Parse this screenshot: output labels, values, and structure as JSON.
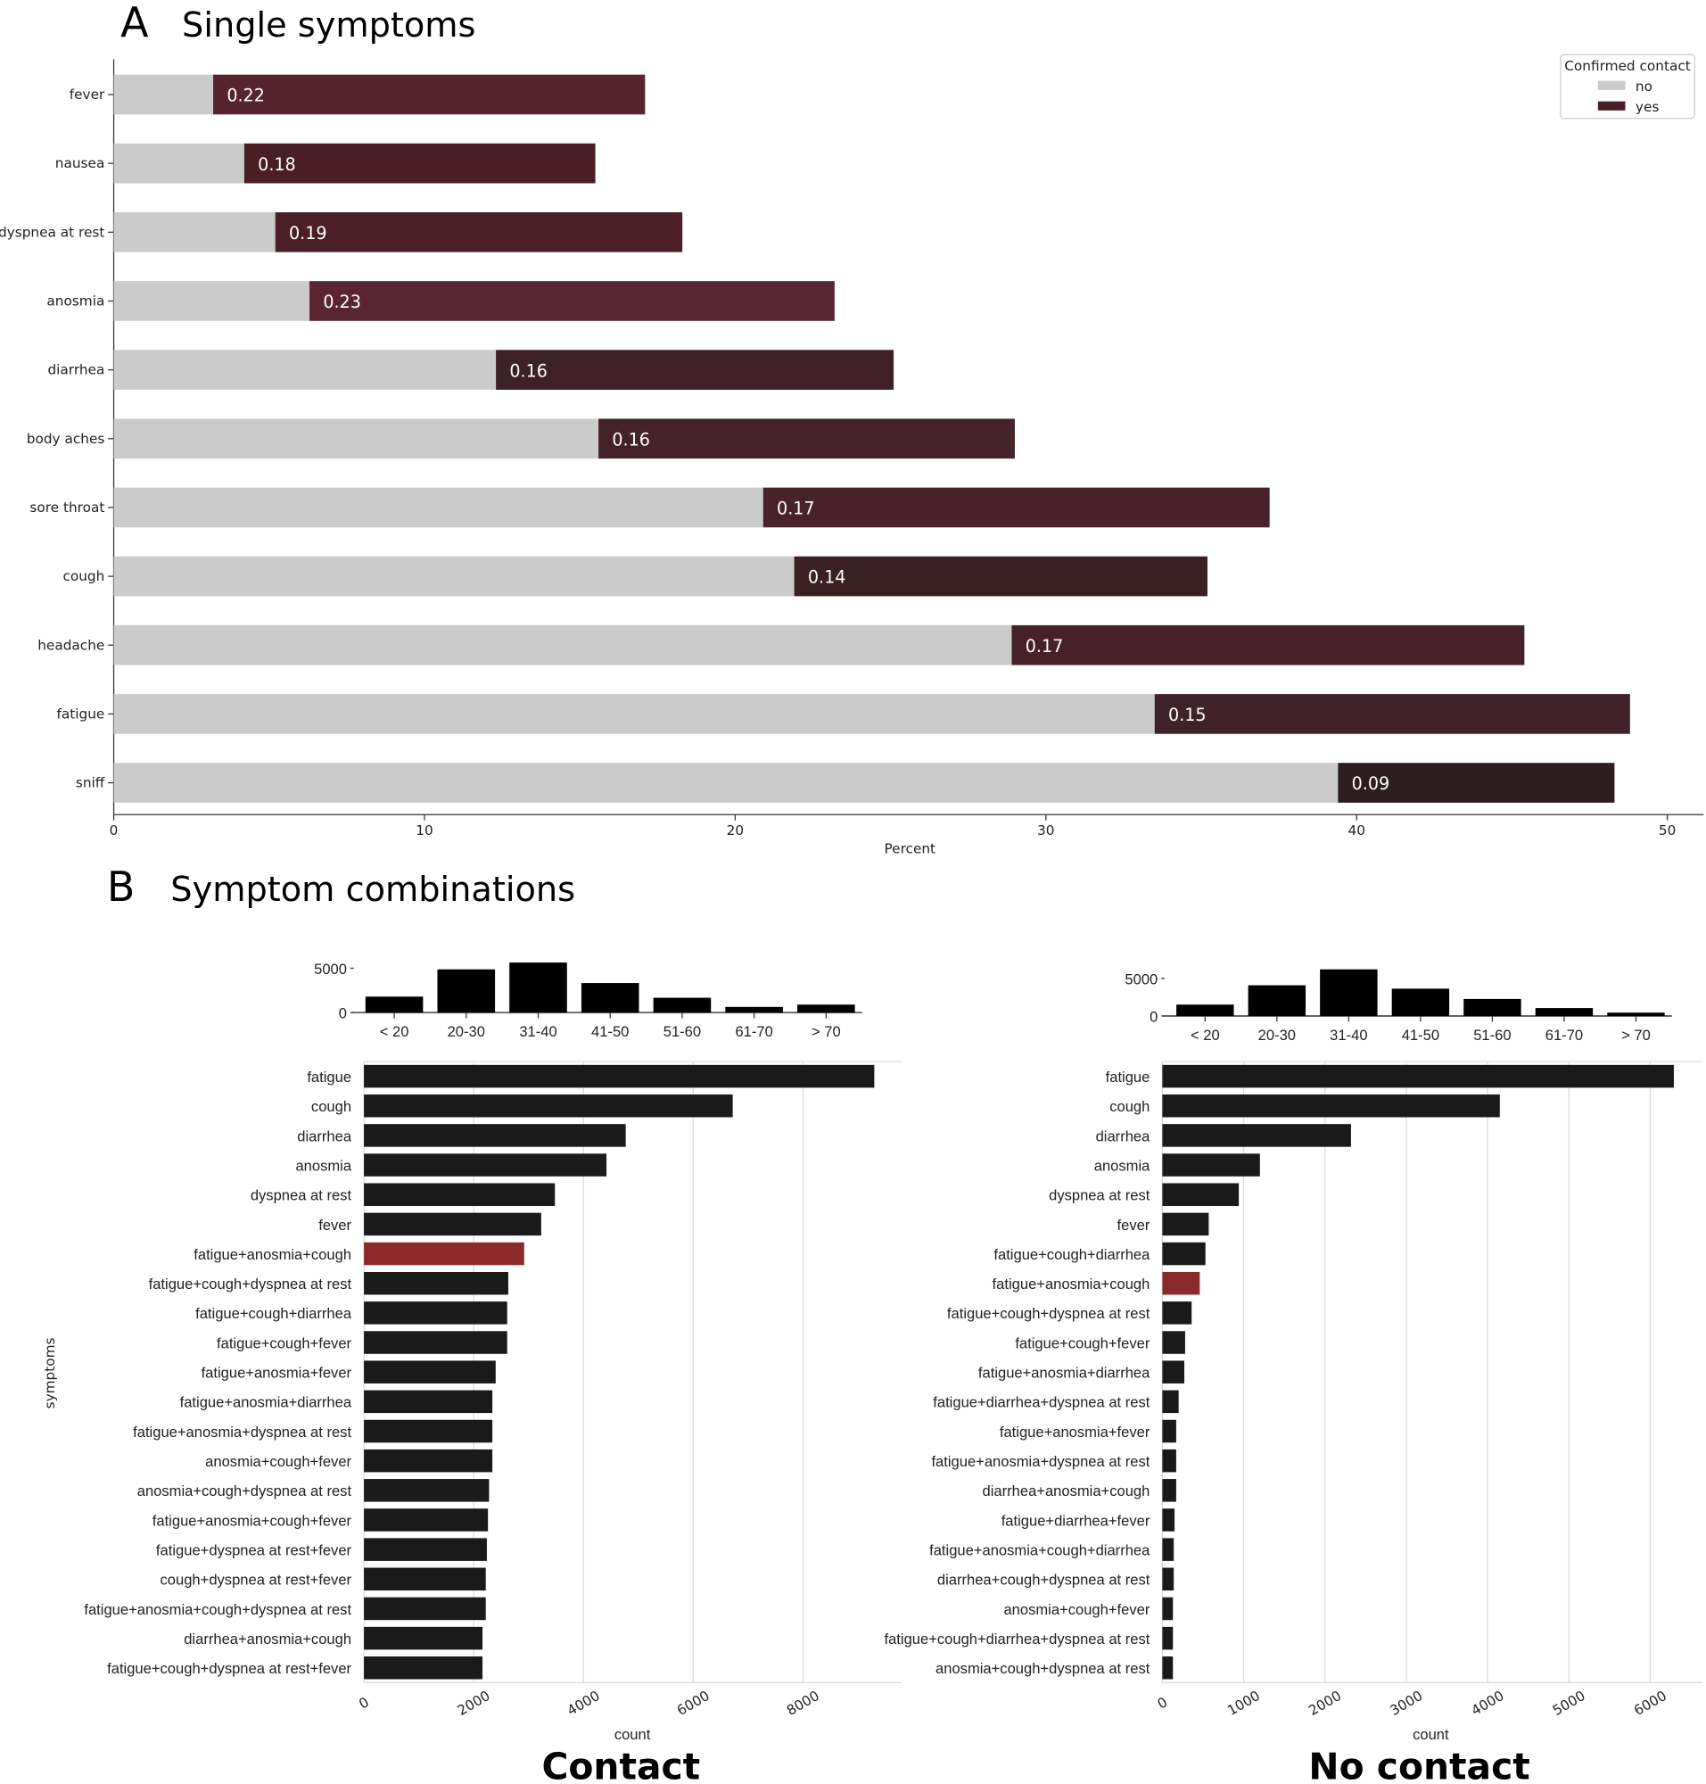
{
  "panel_a": {
    "letter": "A",
    "title": "Single symptoms"
  },
  "panel_b": {
    "letter": "B",
    "title": "Symptom combinations",
    "ylabel": "symptoms"
  },
  "chart_data": [
    {
      "type": "bar",
      "orientation": "horizontal",
      "stacked": true,
      "title": "Single symptoms",
      "xlabel": "Percent",
      "xlim": [
        0,
        50
      ],
      "xticks": [
        "0",
        "10",
        "20",
        "30",
        "40",
        "50"
      ],
      "legend": {
        "title": "Confirmed contact",
        "placement": "top-right",
        "entries": [
          "no",
          "yes"
        ]
      },
      "colors": {
        "no": "#cbcbcb",
        "yes": [
          "#56242f",
          "#4a1e25",
          "#4b1f27",
          "#5a2532",
          "#3e2126",
          "#43222a",
          "#48212a",
          "#3a1f23",
          "#47212a",
          "#40222a",
          "#2c1d20"
        ]
      },
      "categories": [
        "fever",
        "nausea",
        "dyspnea at rest",
        "anosmia",
        "diarrhea",
        "body aches",
        "sore throat",
        "cough",
        "headache",
        "fatigue",
        "sniff"
      ],
      "series": [
        {
          "name": "no",
          "values": [
            3.2,
            4.2,
            5.2,
            6.3,
            12.3,
            15.6,
            20.9,
            21.9,
            28.9,
            33.5,
            39.4
          ]
        },
        {
          "name": "yes",
          "values": [
            13.9,
            11.3,
            13.1,
            16.9,
            12.8,
            13.4,
            16.3,
            13.3,
            16.5,
            15.3,
            8.9
          ]
        }
      ],
      "data_labels": [
        "0.22",
        "0.18",
        "0.19",
        "0.23",
        "0.16",
        "0.16",
        "0.17",
        "0.14",
        "0.17",
        "0.15",
        "0.09"
      ]
    },
    {
      "type": "bar",
      "title": "",
      "ylim": [
        0,
        5800
      ],
      "yticks": [
        "0",
        "5000"
      ],
      "categories": [
        "< 20",
        "20-30",
        "31-40",
        "41-50",
        "51-60",
        "61-70",
        "> 70"
      ],
      "values": [
        1800,
        4870,
        5640,
        3330,
        1670,
        640,
        900
      ]
    },
    {
      "type": "bar",
      "orientation": "horizontal",
      "caption": "Contact",
      "xlabel": "count",
      "xlim": [
        0,
        9800
      ],
      "xticks": [
        "0",
        "2000",
        "4000",
        "6000",
        "8000"
      ],
      "highlight_color": "#8b2a2a",
      "highlight": "fatigue+anosmia+cough",
      "categories": [
        "fatigue",
        "cough",
        "diarrhea",
        "anosmia",
        "dyspnea at rest",
        "fever",
        "fatigue+anosmia+cough",
        "fatigue+cough+dyspnea at rest",
        "fatigue+cough+diarrhea",
        "fatigue+cough+fever",
        "fatigue+anosmia+fever",
        "fatigue+anosmia+diarrhea",
        "fatigue+anosmia+dyspnea at rest",
        "anosmia+cough+fever",
        "anosmia+cough+dyspnea at rest",
        "fatigue+anosmia+cough+fever",
        "fatigue+dyspnea at rest+fever",
        "cough+dyspnea at rest+fever",
        "fatigue+anosmia+cough+dyspnea at rest",
        "diarrhea+anosmia+cough",
        "fatigue+cough+dyspnea at rest+fever"
      ],
      "values": [
        9300,
        6720,
        4770,
        4420,
        3480,
        3230,
        2920,
        2630,
        2610,
        2610,
        2400,
        2340,
        2340,
        2340,
        2280,
        2260,
        2240,
        2220,
        2220,
        2160,
        2160
      ]
    },
    {
      "type": "bar",
      "title": "",
      "ylim": [
        0,
        7000
      ],
      "yticks": [
        "0",
        "5000"
      ],
      "categories": [
        "< 20",
        "20-30",
        "31-40",
        "41-50",
        "51-60",
        "61-70",
        "> 70"
      ],
      "values": [
        1520,
        4090,
        6210,
        3640,
        2270,
        1060,
        450
      ]
    },
    {
      "type": "bar",
      "orientation": "horizontal",
      "caption": "No contact",
      "xlabel": "count",
      "xlim": [
        0,
        6650
      ],
      "xticks": [
        "0",
        "1000",
        "2000",
        "3000",
        "4000",
        "5000",
        "6000"
      ],
      "highlight_color": "#8b2a2a",
      "highlight": "fatigue+anosmia+cough",
      "categories": [
        "fatigue",
        "cough",
        "diarrhea",
        "anosmia",
        "dyspnea at rest",
        "fever",
        "fatigue+cough+diarrhea",
        "fatigue+anosmia+cough",
        "fatigue+cough+dyspnea at rest",
        "fatigue+cough+fever",
        "fatigue+anosmia+diarrhea",
        "fatigue+diarrhea+dyspnea at rest",
        "fatigue+anosmia+fever",
        "fatigue+anosmia+dyspnea at rest",
        "diarrhea+anosmia+cough",
        "fatigue+diarrhea+fever",
        "fatigue+anosmia+cough+diarrhea",
        "diarrhea+cough+dyspnea at rest",
        "anosmia+cough+fever",
        "fatigue+cough+diarrhea+dyspnea at rest",
        "anosmia+cough+dyspnea at rest"
      ],
      "values": [
        6290,
        4150,
        2320,
        1200,
        940,
        570,
        530,
        460,
        360,
        280,
        270,
        200,
        170,
        170,
        170,
        150,
        140,
        140,
        130,
        130,
        130
      ]
    }
  ]
}
